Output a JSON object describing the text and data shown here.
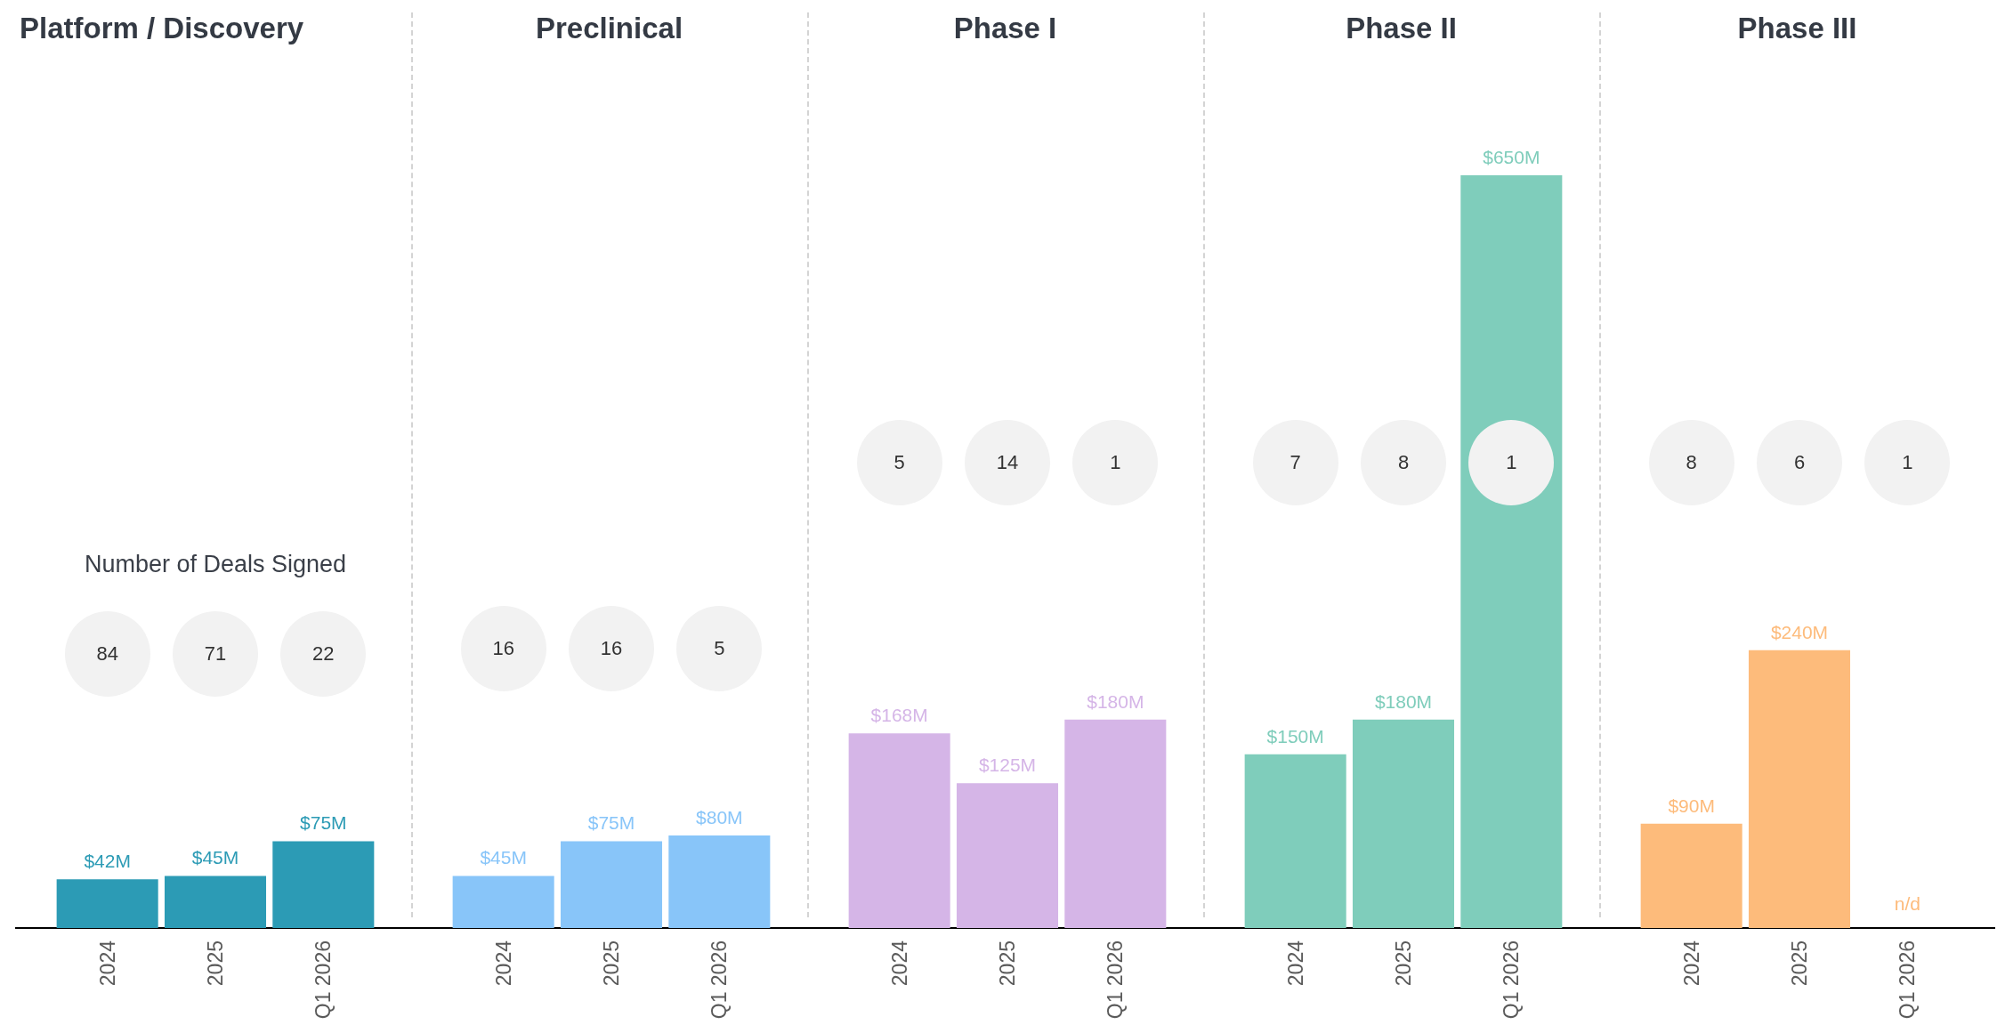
{
  "chart_data": [
    {
      "type": "bar",
      "title": "Platform / Discovery",
      "categories": [
        "2024",
        "2025",
        "Q1 2026"
      ],
      "values": [
        42,
        45,
        75
      ],
      "value_labels": [
        "$42M",
        "$45M",
        "$75M"
      ],
      "color": "#2c9bb5",
      "annotations": [
        "Number of Deals Signed",
        "84",
        "71",
        "22"
      ]
    },
    {
      "type": "bar",
      "title": "Preclinical",
      "categories": [
        "2024",
        "2025",
        "Q1 2026"
      ],
      "values": [
        45,
        75,
        80
      ],
      "value_labels": [
        "$45M",
        "$75M",
        "$80M"
      ],
      "color": "#88c5f9",
      "annotations": [
        "16",
        "16",
        "5"
      ]
    },
    {
      "type": "bar",
      "title": "Phase I",
      "categories": [
        "2024",
        "2025",
        "Q1 2026"
      ],
      "values": [
        168,
        125,
        180
      ],
      "value_labels": [
        "$168M",
        "$125M",
        "$180M"
      ],
      "color": "#d5b5e7",
      "annotations": [
        "5",
        "14",
        "1"
      ]
    },
    {
      "type": "bar",
      "title": "Phase II",
      "categories": [
        "2024",
        "2025",
        "Q1 2026"
      ],
      "values": [
        150,
        180,
        650
      ],
      "value_labels": [
        "$150M",
        "$180M",
        "$650M"
      ],
      "color": "#7fcdbb",
      "annotations": [
        "7",
        "8",
        "1"
      ]
    },
    {
      "type": "bar",
      "title": "Phase III",
      "categories": [
        "2024",
        "2025",
        "Q1 2026"
      ],
      "values": [
        90,
        240,
        null
      ],
      "value_labels": [
        "$90M",
        "$240M",
        "n/d"
      ],
      "color": "#fdbb7b",
      "annotations": [
        "8",
        "6",
        "1"
      ]
    }
  ]
}
